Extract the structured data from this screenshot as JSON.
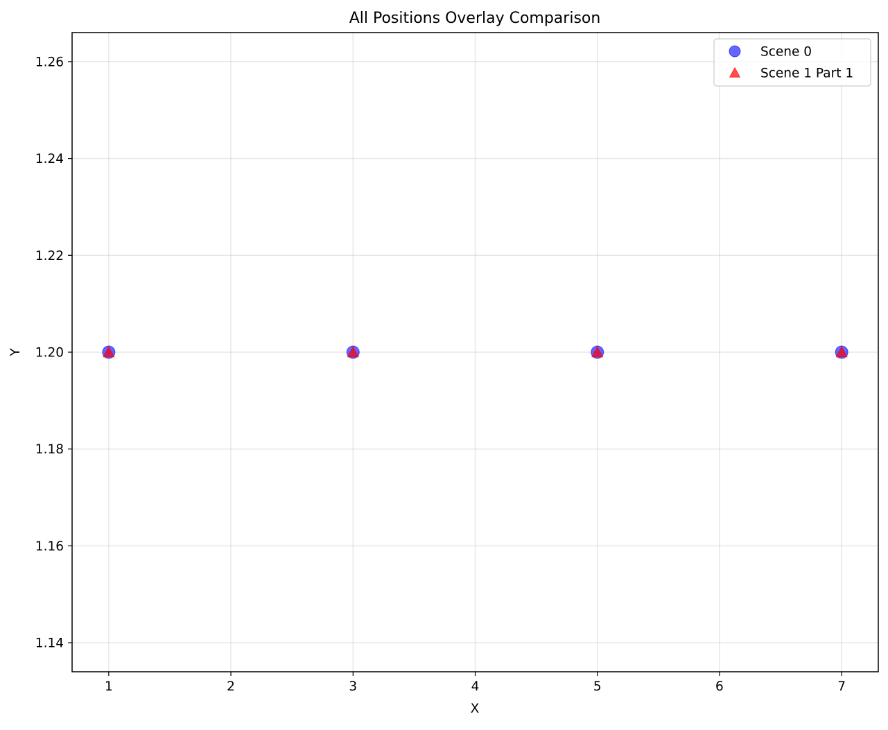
{
  "chart_data": {
    "type": "scatter",
    "title": "All Positions Overlay Comparison",
    "xlabel": "X",
    "ylabel": "Y",
    "xlim": [
      0.7,
      7.3
    ],
    "ylim": [
      1.134,
      1.266
    ],
    "xticks": [
      1,
      2,
      3,
      4,
      5,
      6,
      7
    ],
    "yticks": [
      1.14,
      1.16,
      1.18,
      1.2,
      1.22,
      1.24,
      1.26
    ],
    "xtick_labels": [
      "1",
      "2",
      "3",
      "4",
      "5",
      "6",
      "7"
    ],
    "ytick_labels": [
      "1.14",
      "1.16",
      "1.18",
      "1.20",
      "1.22",
      "1.24",
      "1.26"
    ],
    "grid": true,
    "legend_position": "top-right",
    "series": [
      {
        "name": "Scene 0",
        "marker": "circle",
        "color": "#0000ff",
        "alpha": 0.6,
        "x": [
          1,
          3,
          5,
          7
        ],
        "y": [
          1.2,
          1.2,
          1.2,
          1.2
        ]
      },
      {
        "name": "Scene 1 Part 1",
        "marker": "triangle",
        "color": "#ff0000",
        "alpha": 0.7,
        "x": [
          1,
          3,
          5,
          7
        ],
        "y": [
          1.2,
          1.2,
          1.2,
          1.2
        ]
      }
    ]
  }
}
